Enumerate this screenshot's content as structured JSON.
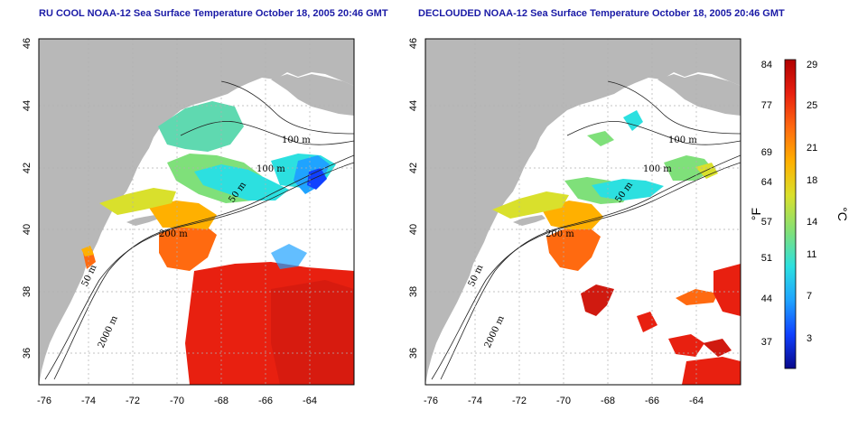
{
  "panels": [
    {
      "id": "left",
      "title": "RU COOL NOAA-12 Sea Surface Temperature October 18, 2005 20:46 GMT"
    },
    {
      "id": "right",
      "title": "DECLOUDED NOAA-12 Sea Surface Temperature October 18, 2005 20:46 GMT"
    }
  ],
  "map_axes": {
    "lon_ticks": [
      "-76",
      "-74",
      "-72",
      "-70",
      "-68",
      "-66",
      "-64"
    ],
    "lat_ticks": [
      "46",
      "44",
      "42",
      "40",
      "38",
      "36"
    ]
  },
  "contour_labels": [
    "100 m",
    "100 m",
    "50 m",
    "200 m",
    "50 m",
    "2000 m"
  ],
  "colorbar": {
    "unit_f": "°F",
    "unit_c": "°C",
    "f_ticks": [
      "84",
      "77",
      "69",
      "64",
      "57",
      "51",
      "44",
      "37"
    ],
    "c_ticks": [
      "29",
      "25",
      "21",
      "18",
      "14",
      "11",
      "7",
      "3"
    ],
    "colors": [
      "#08088a",
      "#1040ff",
      "#1fa3ff",
      "#2ce0e0",
      "#7fe07a",
      "#d9e02c",
      "#ffb000",
      "#ff6a10",
      "#e82010",
      "#b00000"
    ]
  },
  "colors": {
    "land": "#b8b8b8",
    "ocean": "#ffffff",
    "contour": "#222222",
    "grid": "#b0b0b0",
    "title": "#1a1aa6"
  }
}
